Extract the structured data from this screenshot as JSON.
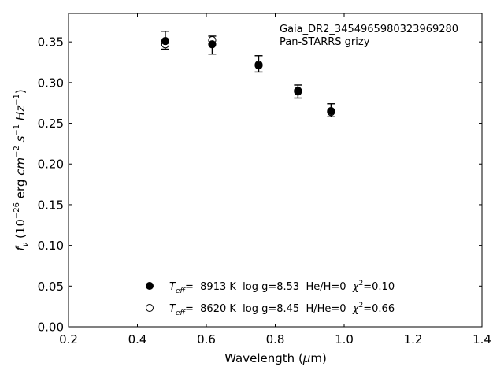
{
  "chart_data": {
    "type": "scatter",
    "title": "",
    "xlabel_prefix": "Wavelength (",
    "xlabel_mu": "μ",
    "xlabel_suffix": "m)",
    "ylabel": {
      "f": "f",
      "nu": "ν",
      "open": " (10",
      "exp1": "−26",
      "mid1": " erg ",
      "cm": "cm",
      "exp2": "−2",
      "s": " s",
      "exp3": "−1",
      "hz": " Hz",
      "exp4": "−1",
      "close": ")"
    },
    "xlim": [
      0.2,
      1.4
    ],
    "ylim": [
      0.0,
      0.385
    ],
    "xticks": [
      0.2,
      0.4,
      0.6,
      0.8,
      1.0,
      1.2,
      1.4
    ],
    "xtick_labels": [
      "0.2",
      "0.4",
      "0.6",
      "0.8",
      "1.0",
      "1.2",
      "1.4"
    ],
    "yticks": [
      0.0,
      0.05,
      0.1,
      0.15,
      0.2,
      0.25,
      0.3,
      0.35
    ],
    "ytick_labels": [
      "0.00",
      "0.05",
      "0.10",
      "0.15",
      "0.20",
      "0.25",
      "0.30",
      "0.35"
    ],
    "annotation": [
      "Gaia_DR2_3454965980323969280",
      "Pan-STARRS grizy"
    ],
    "observed": {
      "x": [
        0.481,
        0.617,
        0.752,
        0.866,
        0.962
      ],
      "y": [
        0.352,
        0.346,
        0.323,
        0.289,
        0.266
      ],
      "yerr": [
        0.011,
        0.011,
        0.01,
        0.008,
        0.008
      ]
    },
    "series": [
      {
        "marker": "filled",
        "label": {
          "teff": "T",
          "eff": "eff",
          "rest": "=  8913 K  log g=8.53  He/H=0  ",
          "chi": "χ",
          "sq": "2",
          "val": "=0.10"
        },
        "x": [
          0.481,
          0.617,
          0.752,
          0.866,
          0.962
        ],
        "y": [
          0.351,
          0.347,
          0.321,
          0.29,
          0.265
        ]
      },
      {
        "marker": "open",
        "label": {
          "teff": "T",
          "eff": "eff",
          "rest": "=  8620 K  log g=8.45  H/He=0  ",
          "chi": "χ",
          "sq": "2",
          "val": "=0.66"
        },
        "x": [
          0.481,
          0.617,
          0.752,
          0.866,
          0.962
        ],
        "y": [
          0.347,
          0.352,
          0.322,
          0.289,
          0.264
        ]
      }
    ],
    "colors": {
      "marker": "#000000",
      "axes": "#000000",
      "background": "#ffffff"
    },
    "legend_loc": "lower-center",
    "grid": false
  }
}
